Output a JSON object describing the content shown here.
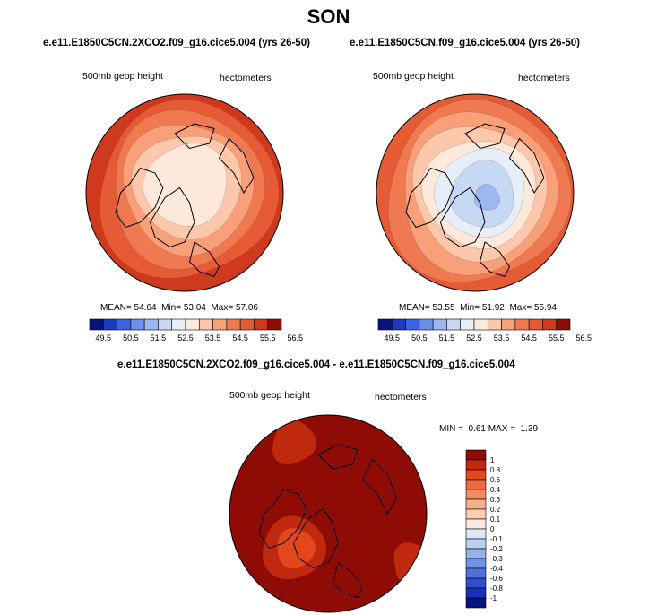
{
  "figure": {
    "title": "SON"
  },
  "panels": [
    {
      "case": "e.e11.E1850C5CN.2XCO2.f09_g16.cice5.004 (yrs 26-50)",
      "variable": "500mb geop height",
      "units": "hectometers",
      "stats": {
        "mean_label": "MEAN=",
        "mean": "54.64",
        "min_label": "Min=",
        "min": "53.04",
        "max_label": "Max=",
        "max": "57.06"
      }
    },
    {
      "case": "e.e11.E1850C5CN.f09_g16.cice5.004 (yrs 26-50)",
      "variable": "500mb geop height",
      "units": "hectometers",
      "stats": {
        "mean_label": "MEAN=",
        "mean": "53.55",
        "min_label": "Min=",
        "min": "51.92",
        "max_label": "Max=",
        "max": "55.94"
      }
    },
    {
      "case": "e.e11.E1850C5CN.2XCO2.f09_g16.cice5.004 - e.e11.E1850C5CN.f09_g16.cice5.004",
      "variable": "500mb geop height",
      "units": "hectometers",
      "stats": {
        "min_label": "MIN =",
        "min": "0.61",
        "max_label": "MAX =",
        "max": "1.39"
      }
    }
  ],
  "chart_data": [
    {
      "type": "heatmap",
      "projection": "north-polar stereographic",
      "title": "e.e11.E1850C5CN.2XCO2.f09_g16.cice5.004 (yrs 26-50)",
      "units": "hectometers",
      "levels": [
        "49.5",
        "50.5",
        "51.5",
        "52.5",
        "53.5",
        "54.5",
        "55.5",
        "56.5"
      ],
      "level_values": [
        49.5,
        50.5,
        51.5,
        52.5,
        53.5,
        54.5,
        55.5,
        56.5
      ],
      "colors": [
        "#08147e",
        "#1c3bc2",
        "#3d62e4",
        "#6a8fec",
        "#9cb8f0",
        "#c5d8f4",
        "#e6eefa",
        "#fde9dc",
        "#fbc8ab",
        "#f7a07a",
        "#ef7a52",
        "#e55b35",
        "#cf3a1e",
        "#8f0c06"
      ],
      "mean": 54.64,
      "min": 53.04,
      "max": 57.06,
      "contour_bands": [
        53.0,
        53.5,
        54.0,
        54.5,
        55.0,
        55.5,
        56.0,
        56.5,
        57.0
      ]
    },
    {
      "type": "heatmap",
      "projection": "north-polar stereographic",
      "title": "e.e11.E1850C5CN.f09_g16.cice5.004 (yrs 26-50)",
      "units": "hectometers",
      "levels": [
        "49.5",
        "50.5",
        "51.5",
        "52.5",
        "53.5",
        "54.5",
        "55.5",
        "56.5"
      ],
      "level_values": [
        49.5,
        50.5,
        51.5,
        52.5,
        53.5,
        54.5,
        55.5,
        56.5
      ],
      "colors": [
        "#08147e",
        "#1c3bc2",
        "#3d62e4",
        "#6a8fec",
        "#9cb8f0",
        "#c5d8f4",
        "#e6eefa",
        "#fde9dc",
        "#fbc8ab",
        "#f7a07a",
        "#ef7a52",
        "#e55b35",
        "#cf3a1e",
        "#8f0c06"
      ],
      "mean": 53.55,
      "min": 51.92,
      "max": 55.94,
      "contour_bands": [
        52.0,
        52.5,
        53.0,
        53.5,
        54.0,
        54.5,
        55.0,
        55.5
      ]
    },
    {
      "type": "heatmap",
      "projection": "north-polar stereographic",
      "title": "e.e11.E1850C5CN.2XCO2.f09_g16.cice5.004 - e.e11.E1850C5CN.f09_g16.cice5.004",
      "units": "hectometers",
      "levels": [
        "1",
        "0.8",
        "0.6",
        "0.4",
        "0.3",
        "0.2",
        "0.1",
        "0",
        "-0.1",
        "-0.2",
        "-0.3",
        "-0.4",
        "-0.6",
        "-0.8",
        "-1"
      ],
      "level_values": [
        1,
        0.8,
        0.6,
        0.4,
        0.3,
        0.2,
        0.1,
        0,
        -0.1,
        -0.2,
        -0.3,
        -0.4,
        -0.6,
        -0.8,
        -1
      ],
      "colors": [
        "#8f0c06",
        "#c1290f",
        "#e4471c",
        "#f06a3d",
        "#f48c62",
        "#f8ad8c",
        "#fbceb6",
        "#fdeade",
        "#dce8f8",
        "#b9d0f1",
        "#93b2eb",
        "#6e92e4",
        "#4d72da",
        "#2f4fcd",
        "#1a30b8",
        "#08147e"
      ],
      "min": 0.61,
      "max": 1.39,
      "contour_bands": [
        0.6,
        0.8,
        1.0
      ]
    }
  ]
}
